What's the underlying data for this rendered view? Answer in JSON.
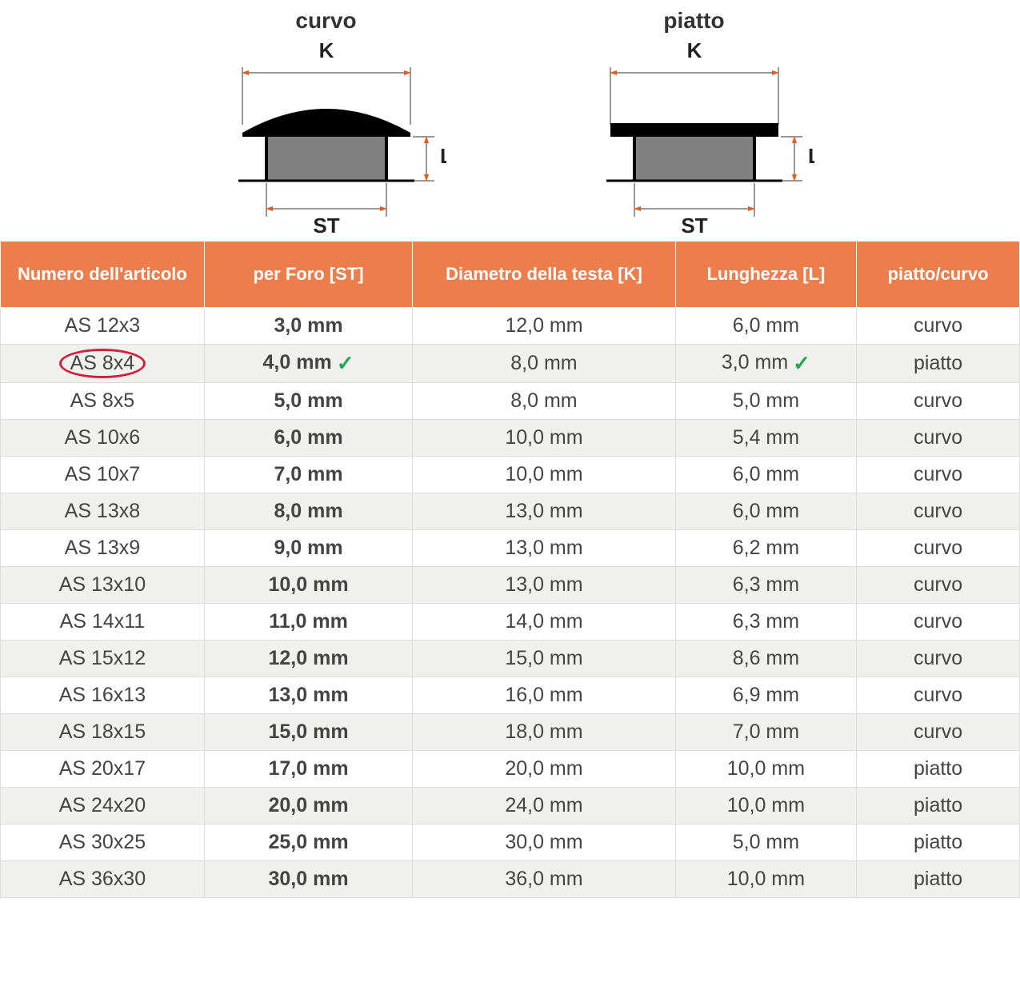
{
  "diagrams": {
    "curvo": {
      "title": "curvo",
      "k_label": "K",
      "st_label": "ST",
      "l_label": "L"
    },
    "piatto": {
      "title": "piatto",
      "k_label": "K",
      "st_label": "ST",
      "l_label": "L"
    }
  },
  "diagram_style": {
    "cap_fill": "#000000",
    "stem_fill": "#808080",
    "bg_fill": "#ffffff",
    "dim_line_color": "#333333",
    "arrow_color": "#e85a1a",
    "label_color": "#222222",
    "label_fontsize_pt": 20,
    "title_fontsize_pt": 22
  },
  "table": {
    "columns": [
      "Numero dell'articolo",
      "per Foro [ST]",
      "Diametro della testa [K]",
      "Lunghezza [L]",
      "piatto/curvo"
    ],
    "header_bg": "#ed7d4b",
    "header_fg": "#ffffff",
    "row_bg_odd": "#ffffff",
    "row_bg_even": "#f0f0ef",
    "border_color": "#dddddd",
    "highlight_circle_color": "#d61f3a",
    "check_color": "#1fa94a",
    "highlighted_row_index": 1,
    "rows": [
      {
        "article": "AS 12x3",
        "st": "3,0 mm",
        "k": "12,0 mm",
        "l": "6,0 mm",
        "type": "curvo"
      },
      {
        "article": "AS 8x4",
        "st": "4,0 mm",
        "k": "8,0 mm",
        "l": "3,0 mm",
        "type": "piatto",
        "circled": true,
        "check_st": true,
        "check_l": true
      },
      {
        "article": "AS 8x5",
        "st": "5,0 mm",
        "k": "8,0 mm",
        "l": "5,0 mm",
        "type": "curvo"
      },
      {
        "article": "AS 10x6",
        "st": "6,0 mm",
        "k": "10,0 mm",
        "l": "5,4 mm",
        "type": "curvo"
      },
      {
        "article": "AS 10x7",
        "st": "7,0 mm",
        "k": "10,0 mm",
        "l": "6,0 mm",
        "type": "curvo"
      },
      {
        "article": "AS 13x8",
        "st": "8,0 mm",
        "k": "13,0 mm",
        "l": "6,0 mm",
        "type": "curvo"
      },
      {
        "article": "AS 13x9",
        "st": "9,0 mm",
        "k": "13,0 mm",
        "l": "6,2 mm",
        "type": "curvo"
      },
      {
        "article": "AS 13x10",
        "st": "10,0 mm",
        "k": "13,0 mm",
        "l": "6,3 mm",
        "type": "curvo"
      },
      {
        "article": "AS 14x11",
        "st": "11,0 mm",
        "k": "14,0 mm",
        "l": "6,3 mm",
        "type": "curvo"
      },
      {
        "article": "AS 15x12",
        "st": "12,0 mm",
        "k": "15,0 mm",
        "l": "8,6 mm",
        "type": "curvo"
      },
      {
        "article": "AS 16x13",
        "st": "13,0 mm",
        "k": "16,0 mm",
        "l": "6,9 mm",
        "type": "curvo"
      },
      {
        "article": "AS 18x15",
        "st": "15,0 mm",
        "k": "18,0 mm",
        "l": "7,0 mm",
        "type": "curvo"
      },
      {
        "article": "AS 20x17",
        "st": "17,0 mm",
        "k": "20,0 mm",
        "l": "10,0 mm",
        "type": "piatto"
      },
      {
        "article": "AS 24x20",
        "st": "20,0 mm",
        "k": "24,0 mm",
        "l": "10,0 mm",
        "type": "piatto"
      },
      {
        "article": "AS 30x25",
        "st": "25,0 mm",
        "k": "30,0 mm",
        "l": "5,0 mm",
        "type": "piatto"
      },
      {
        "article": "AS 36x30",
        "st": "30,0 mm",
        "k": "36,0 mm",
        "l": "10,0 mm",
        "type": "piatto"
      }
    ]
  }
}
